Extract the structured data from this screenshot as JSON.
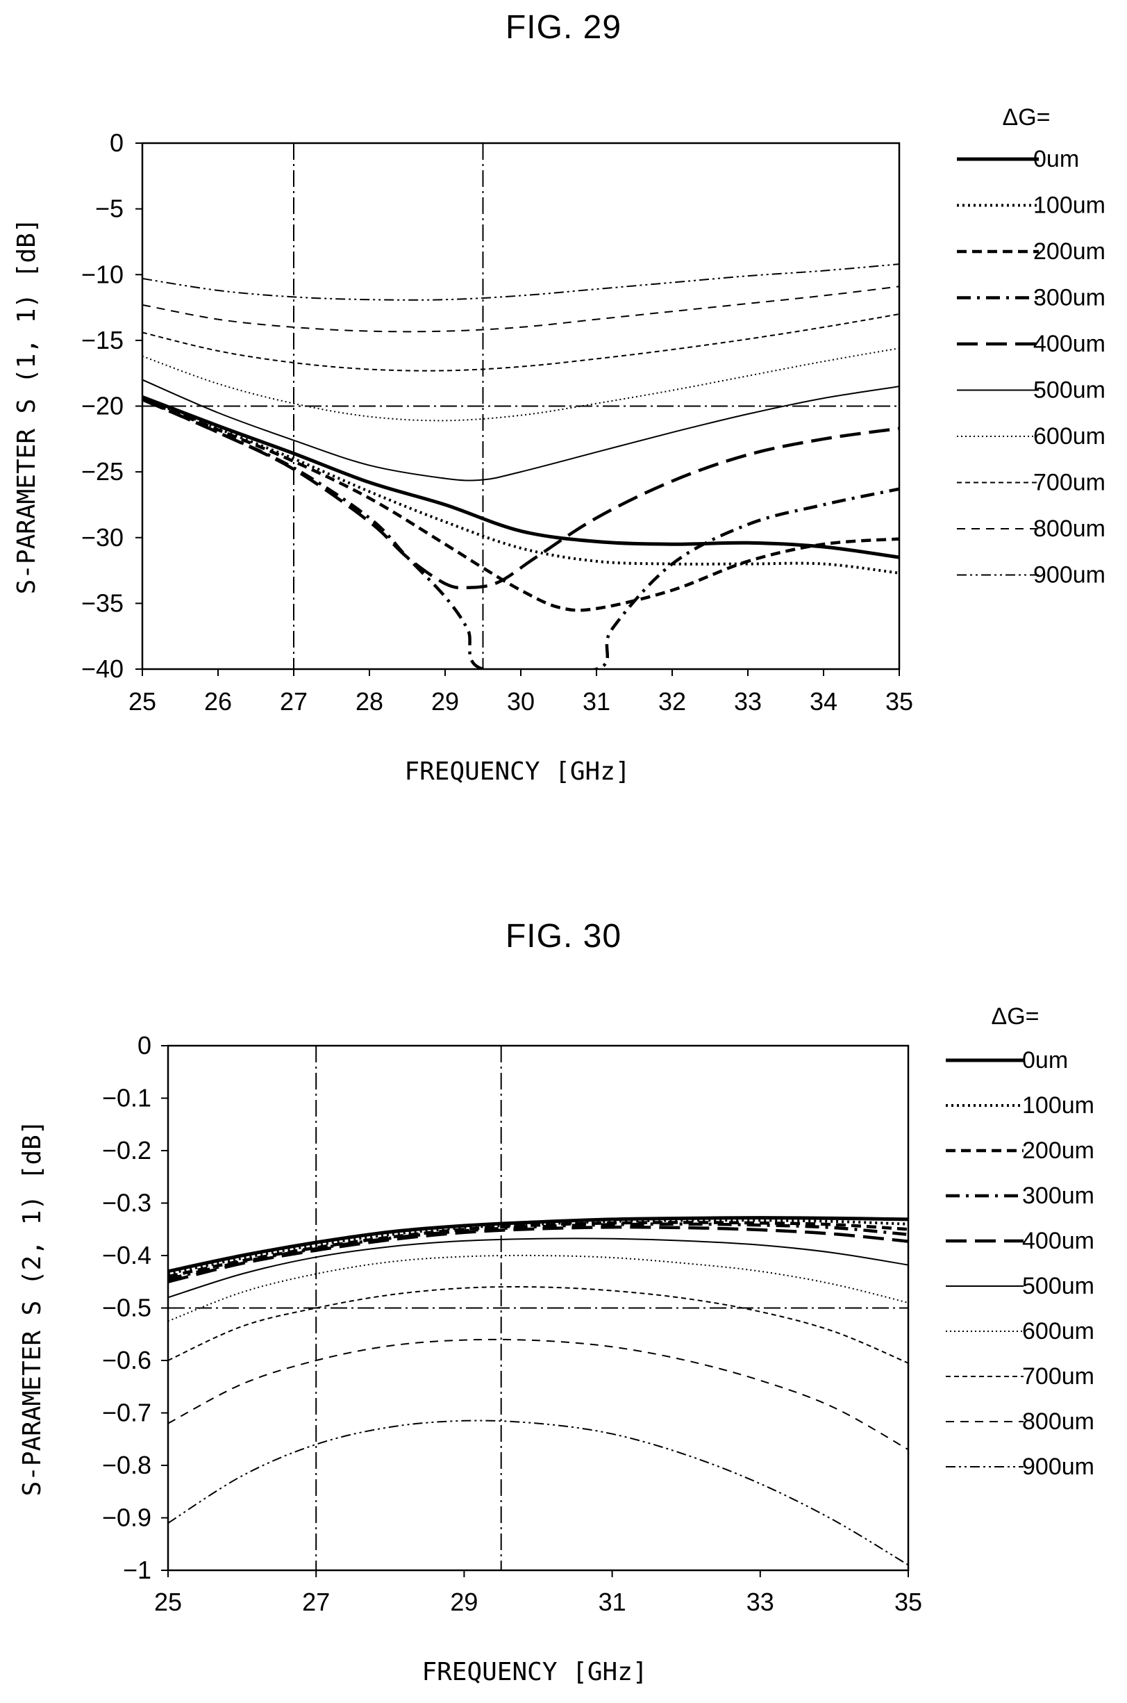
{
  "figures": [
    {
      "title": "FIG. 29",
      "xlabel": "FREQUENCY [GHz]",
      "ylabel": "S-PARAMETER S (1, 1) [dB]",
      "legend_title": "ΔG="
    },
    {
      "title": "FIG. 30",
      "xlabel": "FREQUENCY [GHz]",
      "ylabel": "S-PARAMETER S (2, 1) [dB]",
      "legend_title": "ΔG="
    }
  ],
  "chart_data": [
    {
      "type": "line",
      "title": "FIG. 29",
      "xlabel": "FREQUENCY [GHz]",
      "ylabel": "S-PARAMETER S (1, 1) [dB]",
      "xlim": [
        25,
        35
      ],
      "ylim": [
        -40,
        0
      ],
      "xticks": [
        25,
        26,
        27,
        28,
        29,
        30,
        31,
        32,
        33,
        34,
        35
      ],
      "yticks": [
        0,
        -5,
        -10,
        -15,
        -20,
        -25,
        -30,
        -35,
        -40
      ],
      "grid": false,
      "legend_title": "ΔG=",
      "legend_position": "right",
      "reference_lines": {
        "x": [
          27,
          29.5
        ],
        "y": [
          -20
        ]
      },
      "series": [
        {
          "name": "0um",
          "style": "solid-thick",
          "x": [
            25,
            26,
            27,
            28,
            29,
            30,
            31,
            32,
            33,
            34,
            35
          ],
          "y": [
            -19.3,
            -21.5,
            -23.6,
            -25.8,
            -27.5,
            -29.5,
            -30.3,
            -30.5,
            -30.4,
            -30.7,
            -31.5
          ]
        },
        {
          "name": "100um",
          "style": "dotted-thick",
          "x": [
            25,
            26,
            27,
            28,
            29,
            30,
            31,
            32,
            33,
            34,
            35
          ],
          "y": [
            -19.4,
            -21.7,
            -24.0,
            -26.5,
            -28.8,
            -30.8,
            -31.8,
            -32.0,
            -32.0,
            -32.0,
            -32.7
          ]
        },
        {
          "name": "200um",
          "style": "dashed-thick",
          "x": [
            25,
            26,
            27,
            28,
            29,
            29.5,
            30,
            30.5,
            31,
            32,
            33,
            34,
            35
          ],
          "y": [
            -19.5,
            -21.8,
            -24.2,
            -27.0,
            -30.5,
            -32.3,
            -34.0,
            -35.3,
            -35.4,
            -34.0,
            -31.8,
            -30.5,
            -30.1
          ]
        },
        {
          "name": "300um",
          "style": "dashdot-thick",
          "x": [
            25,
            26,
            27,
            28,
            28.5,
            29,
            29.3,
            29.5,
            31,
            31.2,
            32,
            33,
            34,
            35
          ],
          "y": [
            -19.5,
            -22.0,
            -24.7,
            -28.5,
            -31.5,
            -34.5,
            -37.0,
            -40.0,
            -40.0,
            -37.0,
            -32.0,
            -29.0,
            -27.5,
            -26.3
          ]
        },
        {
          "name": "400um",
          "style": "longdash-thick",
          "x": [
            25,
            26,
            27,
            28,
            28.5,
            29,
            29.3,
            29.7,
            30.2,
            31,
            32,
            33,
            34,
            35
          ],
          "y": [
            -19.5,
            -22.0,
            -24.8,
            -28.8,
            -31.5,
            -33.5,
            -33.8,
            -33.4,
            -31.5,
            -28.5,
            -25.7,
            -23.7,
            -22.5,
            -21.7
          ]
        },
        {
          "name": "500um",
          "style": "solid-thin",
          "x": [
            25,
            26,
            27,
            28,
            29,
            29.5,
            30,
            31,
            32,
            33,
            34,
            35
          ],
          "y": [
            -18.0,
            -20.5,
            -22.6,
            -24.5,
            -25.5,
            -25.6,
            -25.0,
            -23.5,
            -22.0,
            -20.6,
            -19.4,
            -18.5
          ]
        },
        {
          "name": "600um",
          "style": "dotted-thin",
          "x": [
            25,
            26,
            27,
            28,
            29,
            30,
            31,
            32,
            33,
            34,
            35
          ],
          "y": [
            -16.2,
            -18.3,
            -19.8,
            -20.8,
            -21.1,
            -20.7,
            -19.8,
            -18.8,
            -17.7,
            -16.6,
            -15.6
          ]
        },
        {
          "name": "700um",
          "style": "dashed-small",
          "x": [
            25,
            26,
            27,
            28,
            29,
            30,
            31,
            32,
            33,
            34,
            35
          ],
          "y": [
            -14.4,
            -15.8,
            -16.7,
            -17.2,
            -17.3,
            -17.0,
            -16.4,
            -15.7,
            -14.9,
            -14.0,
            -13.0
          ]
        },
        {
          "name": "800um",
          "style": "dashed-medium",
          "x": [
            25,
            26,
            27,
            28,
            29,
            30,
            31,
            32,
            33,
            34,
            35
          ],
          "y": [
            -12.3,
            -13.4,
            -14.0,
            -14.3,
            -14.3,
            -14.0,
            -13.4,
            -12.8,
            -12.2,
            -11.6,
            -10.9
          ]
        },
        {
          "name": "900um",
          "style": "dashdotdot-thin",
          "x": [
            25,
            26,
            27,
            28,
            29,
            30,
            31,
            32,
            33,
            34,
            35
          ],
          "y": [
            -10.3,
            -11.2,
            -11.7,
            -11.9,
            -11.9,
            -11.6,
            -11.1,
            -10.6,
            -10.1,
            -9.7,
            -9.2
          ]
        }
      ]
    },
    {
      "type": "line",
      "title": "FIG. 30",
      "xlabel": "FREQUENCY [GHz]",
      "ylabel": "S-PARAMETER S (2, 1) [dB]",
      "xlim": [
        25,
        35
      ],
      "ylim": [
        -1,
        0
      ],
      "xticks": [
        25,
        27,
        29,
        31,
        33,
        35
      ],
      "yticks": [
        0,
        -0.1,
        -0.2,
        -0.3,
        -0.4,
        -0.5,
        -0.6,
        -0.7,
        -0.8,
        -0.9,
        -1
      ],
      "grid": false,
      "legend_title": "ΔG=",
      "legend_position": "right",
      "reference_lines": {
        "x": [
          27,
          29.5
        ],
        "y": [
          -0.5
        ]
      },
      "series": [
        {
          "name": "0um",
          "style": "solid-thick",
          "x": [
            25,
            26,
            27,
            28,
            29,
            30,
            31,
            32,
            33,
            34,
            35
          ],
          "y": [
            -0.43,
            -0.4,
            -0.375,
            -0.355,
            -0.343,
            -0.336,
            -0.331,
            -0.329,
            -0.328,
            -0.329,
            -0.331
          ]
        },
        {
          "name": "100um",
          "style": "dotted-thick",
          "x": [
            25,
            26,
            27,
            28,
            29,
            30,
            31,
            32,
            33,
            34,
            35
          ],
          "y": [
            -0.435,
            -0.405,
            -0.38,
            -0.36,
            -0.347,
            -0.34,
            -0.335,
            -0.333,
            -0.333,
            -0.335,
            -0.34
          ]
        },
        {
          "name": "200um",
          "style": "dashed-thick",
          "x": [
            25,
            26,
            27,
            28,
            29,
            30,
            31,
            32,
            33,
            34,
            35
          ],
          "y": [
            -0.44,
            -0.41,
            -0.385,
            -0.365,
            -0.35,
            -0.342,
            -0.338,
            -0.337,
            -0.338,
            -0.341,
            -0.35
          ]
        },
        {
          "name": "300um",
          "style": "dashdot-thick",
          "x": [
            25,
            26,
            27,
            28,
            29,
            30,
            31,
            32,
            33,
            34,
            35
          ],
          "y": [
            -0.445,
            -0.412,
            -0.387,
            -0.367,
            -0.353,
            -0.345,
            -0.341,
            -0.34,
            -0.342,
            -0.347,
            -0.36
          ]
        },
        {
          "name": "400um",
          "style": "longdash-thick",
          "x": [
            25,
            26,
            27,
            28,
            29,
            30,
            31,
            32,
            33,
            34,
            35
          ],
          "y": [
            -0.45,
            -0.415,
            -0.39,
            -0.37,
            -0.356,
            -0.349,
            -0.346,
            -0.347,
            -0.351,
            -0.359,
            -0.373
          ]
        },
        {
          "name": "500um",
          "style": "solid-thin",
          "x": [
            25,
            26,
            27,
            28,
            29,
            30,
            31,
            32,
            33,
            34,
            35
          ],
          "y": [
            -0.48,
            -0.435,
            -0.403,
            -0.383,
            -0.372,
            -0.368,
            -0.368,
            -0.372,
            -0.38,
            -0.395,
            -0.418
          ]
        },
        {
          "name": "600um",
          "style": "dotted-thin",
          "x": [
            25,
            26,
            27,
            28,
            29,
            30,
            31,
            32,
            33,
            34,
            35
          ],
          "y": [
            -0.525,
            -0.47,
            -0.435,
            -0.412,
            -0.402,
            -0.4,
            -0.404,
            -0.415,
            -0.43,
            -0.455,
            -0.49
          ]
        },
        {
          "name": "700um",
          "style": "dashed-small",
          "x": [
            25,
            26,
            27,
            28,
            29,
            30,
            31,
            32,
            33,
            34,
            35
          ],
          "y": [
            -0.6,
            -0.535,
            -0.5,
            -0.475,
            -0.462,
            -0.46,
            -0.467,
            -0.482,
            -0.507,
            -0.545,
            -0.605
          ]
        },
        {
          "name": "800um",
          "style": "dashed-medium",
          "x": [
            25,
            26,
            27,
            28,
            29,
            30,
            31,
            32,
            33,
            34,
            35
          ],
          "y": [
            -0.72,
            -0.645,
            -0.6,
            -0.572,
            -0.561,
            -0.562,
            -0.574,
            -0.6,
            -0.638,
            -0.69,
            -0.77
          ]
        },
        {
          "name": "900um",
          "style": "dashdotdot-thin",
          "x": [
            25,
            26,
            27,
            28,
            29,
            30,
            31,
            32,
            33,
            34,
            35
          ],
          "y": [
            -0.91,
            -0.82,
            -0.76,
            -0.727,
            -0.715,
            -0.72,
            -0.74,
            -0.78,
            -0.835,
            -0.905,
            -0.99
          ]
        }
      ]
    }
  ]
}
